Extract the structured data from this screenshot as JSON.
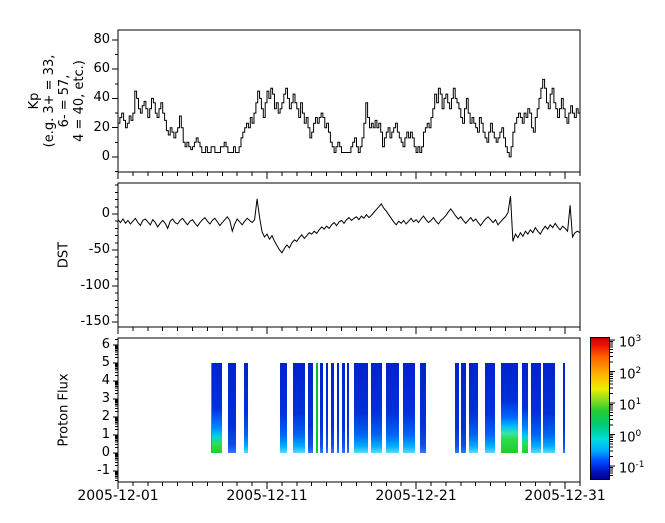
{
  "figure": {
    "background": "#ffffff",
    "axis_color": "#000000",
    "line_color": "#000000"
  },
  "x_axis": {
    "tick_labels": [
      "2005-12-01",
      "2005-12-11",
      "2005-12-21",
      "2005-12-31"
    ],
    "tick_days": [
      1,
      11,
      21,
      31
    ],
    "minor_tick_interval_days": 1,
    "range_days": [
      1,
      32
    ]
  },
  "chart_data": [
    {
      "type": "line",
      "id": "kp",
      "style": "steps",
      "ylabel": "Kp\n(e.g. 3+ = 33,\n6- = 57,\n4 = 40, etc.)",
      "ylim": [
        -10.3,
        86.8
      ],
      "yticks": [
        0,
        20,
        40,
        60,
        80
      ],
      "y_minor_interval": 10,
      "x_start_day": 1,
      "dt_hours": 3,
      "values": [
        23,
        27,
        30,
        25,
        20,
        23,
        28,
        25,
        30,
        45,
        40,
        33,
        30,
        35,
        38,
        33,
        27,
        33,
        40,
        37,
        30,
        27,
        33,
        37,
        30,
        25,
        18,
        15,
        20,
        17,
        13,
        17,
        20,
        28,
        20,
        10,
        7,
        10,
        7,
        5,
        7,
        10,
        13,
        10,
        7,
        3,
        3,
        7,
        3,
        3,
        7,
        7,
        3,
        3,
        3,
        7,
        7,
        10,
        7,
        3,
        3,
        3,
        7,
        3,
        3,
        7,
        13,
        17,
        20,
        23,
        20,
        27,
        23,
        30,
        37,
        45,
        40,
        33,
        27,
        37,
        45,
        40,
        47,
        43,
        33,
        37,
        30,
        33,
        37,
        43,
        47,
        40,
        33,
        37,
        43,
        37,
        33,
        27,
        37,
        30,
        23,
        27,
        20,
        13,
        17,
        23,
        27,
        23,
        27,
        30,
        27,
        20,
        23,
        17,
        10,
        7,
        3,
        7,
        10,
        7,
        3,
        3,
        3,
        3,
        3,
        7,
        10,
        13,
        7,
        3,
        7,
        13,
        23,
        37,
        27,
        20,
        23,
        20,
        25,
        20,
        23,
        17,
        7,
        13,
        17,
        20,
        13,
        17,
        20,
        23,
        17,
        13,
        10,
        7,
        13,
        17,
        13,
        17,
        13,
        7,
        3,
        7,
        3,
        7,
        17,
        20,
        23,
        20,
        27,
        33,
        43,
        37,
        47,
        43,
        33,
        40,
        43,
        37,
        33,
        40,
        47,
        40,
        37,
        33,
        27,
        23,
        33,
        40,
        30,
        23,
        27,
        23,
        20,
        17,
        27,
        23,
        17,
        13,
        10,
        17,
        23,
        17,
        13,
        10,
        13,
        17,
        20,
        13,
        7,
        3,
        0,
        7,
        17,
        23,
        27,
        30,
        27,
        23,
        30,
        27,
        33,
        30,
        20,
        17,
        27,
        33,
        40,
        47,
        53,
        47,
        37,
        33,
        43,
        47,
        37,
        33,
        27,
        33,
        40,
        33,
        27,
        23,
        30,
        35,
        30,
        27,
        33,
        30
      ]
    },
    {
      "type": "line",
      "id": "dst",
      "style": "line",
      "ylabel": "DST",
      "ylim": [
        -157,
        43
      ],
      "yticks": [
        0,
        -50,
        -100,
        -150
      ],
      "y_minor_interval": 10,
      "x_start_day": 1,
      "dt_hours": 4,
      "values": [
        -8,
        -12,
        -7,
        -13,
        -9,
        -14,
        -10,
        -6,
        -12,
        -16,
        -9,
        -7,
        -11,
        -15,
        -8,
        -12,
        -18,
        -13,
        -9,
        -13,
        -20,
        -10,
        -7,
        -12,
        -14,
        -9,
        -6,
        -11,
        -15,
        -10,
        -8,
        -13,
        -17,
        -12,
        -8,
        -5,
        -10,
        -14,
        -9,
        -6,
        -11,
        -16,
        -12,
        -8,
        -4,
        -9,
        -24,
        -14,
        -7,
        -11,
        -15,
        -10,
        -6,
        -9,
        -12,
        -8,
        21,
        -5,
        -25,
        -32,
        -28,
        -35,
        -30,
        -38,
        -44,
        -50,
        -54,
        -48,
        -43,
        -47,
        -40,
        -36,
        -38,
        -33,
        -29,
        -34,
        -30,
        -26,
        -28,
        -24,
        -27,
        -22,
        -18,
        -21,
        -17,
        -20,
        -15,
        -12,
        -16,
        -11,
        -9,
        -13,
        -8,
        -5,
        -9,
        -6,
        -4,
        -8,
        -3,
        -6,
        -1,
        -5,
        -2,
        2,
        6,
        10,
        14,
        8,
        4,
        -1,
        -6,
        -11,
        -15,
        -10,
        -13,
        -9,
        -14,
        -10,
        -6,
        -11,
        -8,
        -12,
        -7,
        -3,
        -8,
        -12,
        -9,
        -5,
        -10,
        -14,
        -9,
        -6,
        -2,
        3,
        7,
        2,
        -3,
        -7,
        -4,
        -9,
        -13,
        -9,
        -5,
        -10,
        -7,
        -12,
        -16,
        -11,
        -7,
        -4,
        -8,
        -12,
        -8,
        -15,
        -11,
        -7,
        -4,
        2,
        25,
        -38,
        -28,
        -33,
        -26,
        -31,
        -24,
        -28,
        -22,
        -26,
        -19,
        -24,
        -28,
        -22,
        -17,
        -21,
        -15,
        -19,
        -13,
        -18,
        -22,
        -17,
        -20,
        -24,
        12,
        -32,
        -26,
        -24,
        -26
      ]
    },
    {
      "type": "heatmap",
      "id": "proton_flux",
      "ylabel": "Proton Flux",
      "ylim": [
        -1.61,
        6.39
      ],
      "yticks": [
        6,
        5,
        4,
        3,
        2,
        1,
        0,
        -1
      ],
      "y_minor_scale": "log",
      "bar_y_range": [
        0,
        5
      ],
      "bars": [
        {
          "start_day": 7.22,
          "end_day": 7.32,
          "profile": "green_stripe"
        },
        {
          "start_day": 7.32,
          "end_day": 7.95,
          "profile": "green"
        },
        {
          "start_day": 8.35,
          "end_day": 8.95,
          "profile": "blue"
        },
        {
          "start_day": 9.45,
          "end_day": 9.75,
          "profile": "cyan"
        },
        {
          "start_day": 11.85,
          "end_day": 12.35,
          "profile": "cyan"
        },
        {
          "start_day": 12.75,
          "end_day": 13.55,
          "profile": "cyan"
        },
        {
          "start_day": 13.75,
          "end_day": 14.1,
          "profile": "blue"
        },
        {
          "start_day": 14.3,
          "end_day": 14.42,
          "profile": "green_stripe"
        },
        {
          "start_day": 14.58,
          "end_day": 14.78,
          "profile": "blue"
        },
        {
          "start_day": 14.95,
          "end_day": 15.12,
          "profile": "blue"
        },
        {
          "start_day": 15.32,
          "end_day": 15.52,
          "profile": "blue"
        },
        {
          "start_day": 15.67,
          "end_day": 15.85,
          "profile": "blue"
        },
        {
          "start_day": 16.0,
          "end_day": 16.22,
          "profile": "blue"
        },
        {
          "start_day": 16.35,
          "end_day": 16.5,
          "profile": "blue"
        },
        {
          "start_day": 16.8,
          "end_day": 17.75,
          "profile": "cyan"
        },
        {
          "start_day": 17.95,
          "end_day": 18.72,
          "profile": "cyan"
        },
        {
          "start_day": 19.0,
          "end_day": 19.87,
          "profile": "cyan"
        },
        {
          "start_day": 20.13,
          "end_day": 20.92,
          "profile": "cyan"
        },
        {
          "start_day": 21.28,
          "end_day": 21.67,
          "profile": "blue"
        },
        {
          "start_day": 23.6,
          "end_day": 23.88,
          "profile": "blue"
        },
        {
          "start_day": 24.0,
          "end_day": 24.33,
          "profile": "blue"
        },
        {
          "start_day": 24.53,
          "end_day": 25.13,
          "profile": "cyan"
        },
        {
          "start_day": 25.6,
          "end_day": 26.27,
          "profile": "cyan"
        },
        {
          "start_day": 26.67,
          "end_day": 27.87,
          "profile": "green_big"
        },
        {
          "start_day": 28.13,
          "end_day": 28.53,
          "profile": "green"
        },
        {
          "start_day": 28.73,
          "end_day": 29.4,
          "profile": "cyan"
        },
        {
          "start_day": 29.53,
          "end_day": 30.33,
          "profile": "cyan"
        },
        {
          "start_day": 30.88,
          "end_day": 30.98,
          "profile": "blue"
        }
      ],
      "profiles": {
        "blue": [
          [
            0,
            "#0022cc"
          ],
          [
            0.7,
            "#0030d8"
          ],
          [
            0.92,
            "#1050e8"
          ],
          [
            1,
            "#3377ff"
          ]
        ],
        "cyan": [
          [
            0,
            "#0022cc"
          ],
          [
            0.55,
            "#0030d8"
          ],
          [
            0.8,
            "#0066f0"
          ],
          [
            0.92,
            "#00aaff"
          ],
          [
            1,
            "#55ddff"
          ]
        ],
        "green": [
          [
            0,
            "#0022cc"
          ],
          [
            0.5,
            "#0030d8"
          ],
          [
            0.72,
            "#0088ff"
          ],
          [
            0.82,
            "#00d4e6"
          ],
          [
            0.9,
            "#2ddd55"
          ],
          [
            1,
            "#22cc33"
          ]
        ],
        "green_big": [
          [
            0,
            "#0022cc"
          ],
          [
            0.42,
            "#0030d8"
          ],
          [
            0.6,
            "#0066ff"
          ],
          [
            0.7,
            "#00bbff"
          ],
          [
            0.78,
            "#33e6aa"
          ],
          [
            0.85,
            "#2ddd44"
          ],
          [
            1,
            "#1ecc33"
          ]
        ],
        "green_stripe": [
          [
            0,
            "#00bb33"
          ],
          [
            1,
            "#00cc33"
          ]
        ]
      },
      "colorbar": {
        "tick_labels": [
          "10^3",
          "10^2",
          "10^1",
          "10^0",
          "10^-1"
        ],
        "tick_exponents": [
          3,
          2,
          1,
          0,
          -1
        ],
        "value_range_exponents": [
          -1.38,
          3.1
        ],
        "colormap": "jet",
        "gradient_stops_top_to_bottom": [
          [
            0,
            "#cc0000"
          ],
          [
            0.05,
            "#ee1100"
          ],
          [
            0.14,
            "#ff6600"
          ],
          [
            0.26,
            "#ffb300"
          ],
          [
            0.36,
            "#eeee00"
          ],
          [
            0.44,
            "#88dd22"
          ],
          [
            0.52,
            "#22cc33"
          ],
          [
            0.62,
            "#00cc77"
          ],
          [
            0.72,
            "#00dddd"
          ],
          [
            0.8,
            "#00aaff"
          ],
          [
            0.88,
            "#0044ff"
          ],
          [
            0.95,
            "#0011bb"
          ],
          [
            1,
            "#000099"
          ]
        ]
      }
    }
  ]
}
